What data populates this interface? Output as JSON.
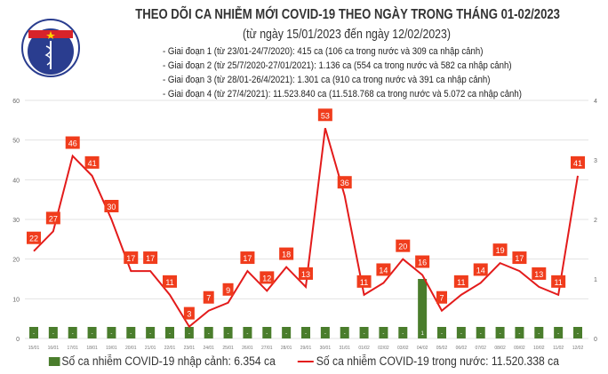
{
  "header": {
    "title": "THEO DÕI CA NHIỄM MỚI COVID-19 THEO NGÀY TRONG THÁNG 01-02/2023",
    "subtitle": "(từ ngày 15/01/2023 đến ngày 12/02/2023)",
    "phases": [
      "- Giai đoạn 1 (từ 23/01-24/7/2020): 415 ca (106 ca trong nước và 309 ca nhập cảnh)",
      "- Giai đoạn 2 (từ 25/7/2020-27/01/2021): 1.136 ca (554 ca trong nước và 582 ca nhập cảnh)",
      "- Giai đoạn 3 (từ 28/01-26/4/2021): 1.301 ca (910 ca trong nước và 391 ca nhập cảnh)",
      "- Giai đoạn 4 (từ 27/4/2021): 11.523.840 ca (11.518.768 ca trong nước và 5.072 ca nhập cảnh)"
    ],
    "logo_text": "BỘ Y TẾ · MINISTRY OF HEALTH"
  },
  "chart_data": {
    "type": "bar+line",
    "categories": [
      "15/01",
      "16/01",
      "17/01",
      "18/01",
      "19/01",
      "20/01",
      "21/01",
      "22/01",
      "23/01",
      "24/01",
      "25/01",
      "26/01",
      "27/01",
      "28/01",
      "29/01",
      "30/01",
      "31/01",
      "01/02",
      "02/02",
      "03/02",
      "04/02",
      "05/02",
      "06/02",
      "07/02",
      "08/02",
      "09/02",
      "10/02",
      "11/02",
      "12/02"
    ],
    "series": [
      {
        "name": "Số ca nhiễm COVID-19 nhập cảnh: 6.354 ca",
        "type": "bar",
        "axis": "right",
        "color": "#4a7d2c",
        "values": [
          0,
          0,
          0,
          0,
          0,
          0,
          0,
          0,
          0,
          0,
          0,
          0,
          0,
          0,
          0,
          0,
          0,
          0,
          0,
          0,
          1,
          0,
          0,
          0,
          0,
          0,
          0,
          0,
          0
        ],
        "labels": [
          "-",
          "-",
          "-",
          "-",
          "-",
          "-",
          "-",
          "-",
          "-",
          "-",
          "-",
          "-",
          "-",
          "-",
          "-",
          "-",
          "-",
          "-",
          "-",
          "-",
          "1",
          "-",
          "-",
          "-",
          "-",
          "-",
          "-",
          "-",
          "-"
        ]
      },
      {
        "name": "Số ca nhiễm COVID-19 trong nước: 11.520.338 ca",
        "type": "line",
        "axis": "left",
        "color": "#e31b1b",
        "values": [
          22,
          27,
          46,
          41,
          30,
          17,
          17,
          11,
          3,
          7,
          9,
          17,
          12,
          18,
          13,
          53,
          36,
          11,
          14,
          20,
          16,
          7,
          11,
          14,
          19,
          17,
          13,
          11,
          41
        ]
      }
    ],
    "yleft": {
      "ticks": [
        0,
        10,
        20,
        30,
        40,
        50,
        60
      ],
      "range": [
        0,
        60
      ]
    },
    "yright": {
      "ticks": [
        0,
        1,
        2,
        3,
        4
      ],
      "range": [
        0,
        4
      ]
    },
    "grid": true,
    "legend": "bottom"
  }
}
